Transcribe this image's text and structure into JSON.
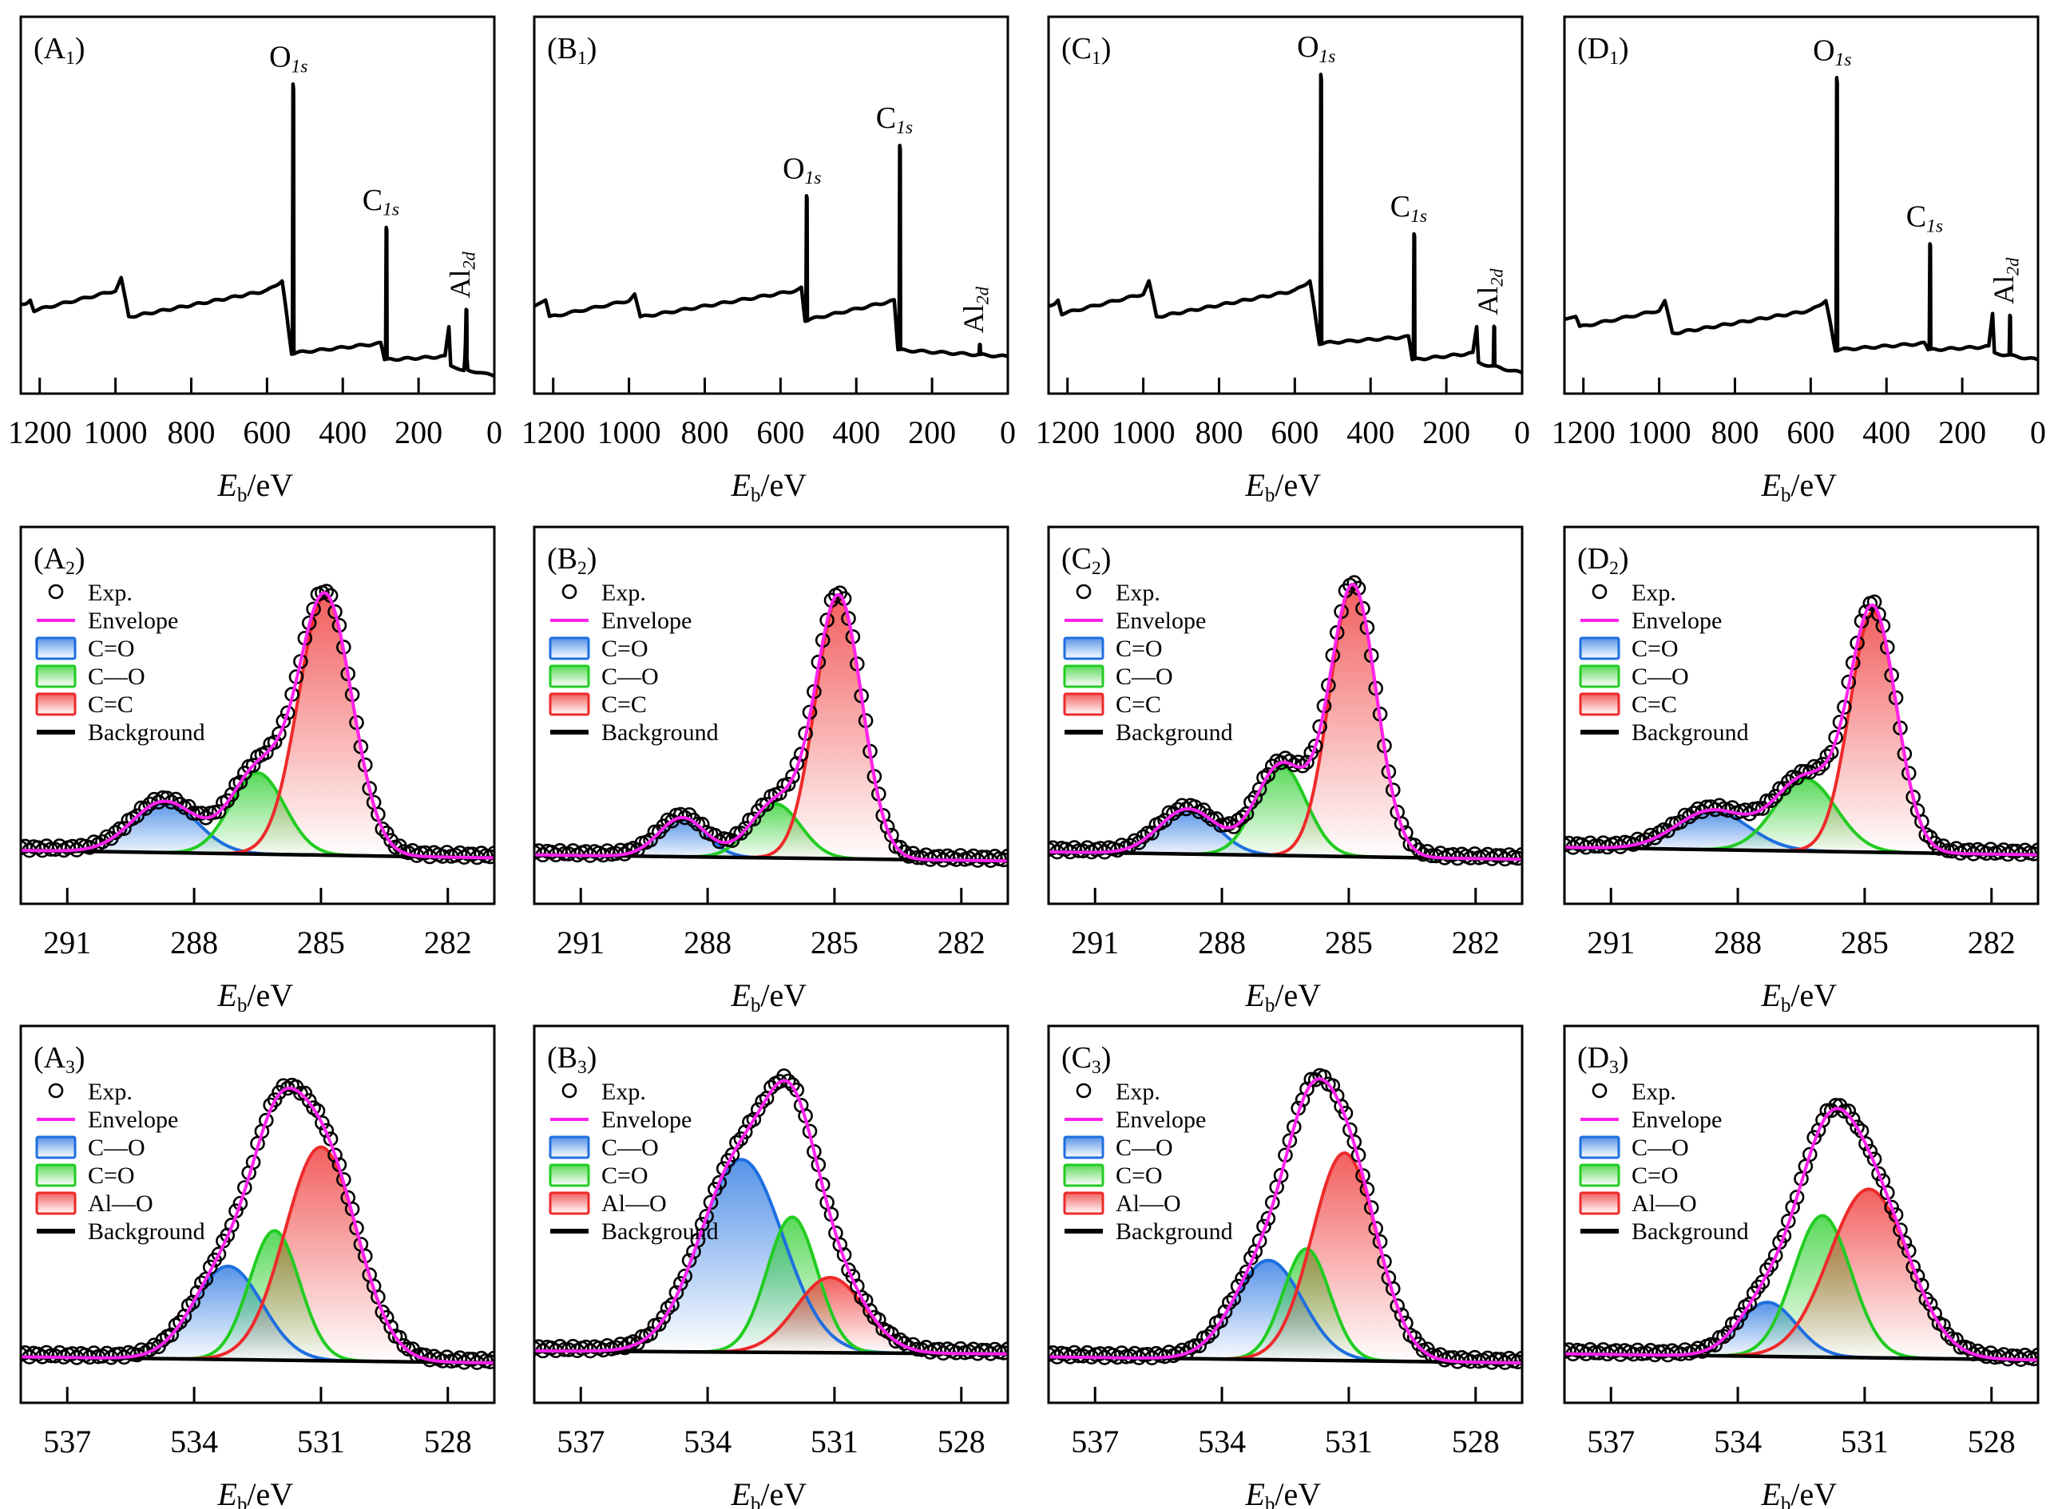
{
  "chart_data": [
    {
      "id": "A1",
      "type": "line",
      "panel_label": "(A",
      "panel_sub": "1",
      "xlabel_main": "E",
      "xlabel_sub": "b",
      "xlabel_unit": "/eV",
      "xlim": [
        1250,
        0
      ],
      "xticks": [
        1200,
        1000,
        800,
        600,
        400,
        200,
        0
      ],
      "peaks": [
        {
          "name": "O",
          "sub": "1s",
          "x": 531,
          "rel_height": 0.82
        },
        {
          "name": "C",
          "sub": "1s",
          "x": 285,
          "rel_height": 0.4
        },
        {
          "name": "Al",
          "sub": "2d",
          "x": 74,
          "rel_height": 0.1,
          "vertical": true
        }
      ],
      "baseline": [
        [
          1250,
          0.195
        ],
        [
          1225,
          0.21
        ],
        [
          1215,
          0.18
        ],
        [
          1000,
          0.24
        ],
        [
          985,
          0.28
        ],
        [
          965,
          0.16
        ],
        [
          600,
          0.24
        ],
        [
          560,
          0.27
        ],
        [
          535,
          0.05
        ],
        [
          300,
          0.08
        ],
        [
          290,
          0.03
        ],
        [
          130,
          0.04
        ],
        [
          120,
          0.13
        ],
        [
          115,
          0.01
        ],
        [
          80,
          0.0
        ],
        [
          75,
          0.08
        ],
        [
          70,
          0.0
        ],
        [
          0,
          -0.02
        ]
      ]
    },
    {
      "id": "B1",
      "type": "line",
      "panel_label": "(B",
      "panel_sub": "1",
      "xlabel_main": "E",
      "xlabel_sub": "b",
      "xlabel_unit": "/eV",
      "xlim": [
        1250,
        0
      ],
      "xticks": [
        1200,
        1000,
        800,
        600,
        400,
        200,
        0
      ],
      "peaks": [
        {
          "name": "O",
          "sub": "1s",
          "x": 531,
          "rel_height": 0.38
        },
        {
          "name": "C",
          "sub": "1s",
          "x": 285,
          "rel_height": 0.62
        },
        {
          "name": "Al",
          "sub": "2d",
          "x": 74,
          "rel_height": 0.03,
          "vertical": true
        }
      ],
      "baseline": [
        [
          1250,
          0.19
        ],
        [
          1220,
          0.21
        ],
        [
          1210,
          0.16
        ],
        [
          1000,
          0.21
        ],
        [
          985,
          0.23
        ],
        [
          970,
          0.16
        ],
        [
          560,
          0.24
        ],
        [
          545,
          0.25
        ],
        [
          535,
          0.15
        ],
        [
          300,
          0.21
        ],
        [
          290,
          0.06
        ],
        [
          0,
          0.04
        ]
      ]
    },
    {
      "id": "C1",
      "type": "line",
      "panel_label": "(C",
      "panel_sub": "1",
      "xlabel_main": "E",
      "xlabel_sub": "b",
      "xlabel_unit": "/eV",
      "xlim": [
        1250,
        0
      ],
      "xticks": [
        1200,
        1000,
        800,
        600,
        400,
        200,
        0
      ],
      "peaks": [
        {
          "name": "O",
          "sub": "1s",
          "x": 531,
          "rel_height": 0.82
        },
        {
          "name": "C",
          "sub": "1s",
          "x": 285,
          "rel_height": 0.38
        },
        {
          "name": "Al",
          "sub": "2d",
          "x": 74,
          "rel_height": 0.12,
          "vertical": true
        }
      ],
      "baseline": [
        [
          1250,
          0.19
        ],
        [
          1225,
          0.21
        ],
        [
          1215,
          0.17
        ],
        [
          1000,
          0.23
        ],
        [
          985,
          0.27
        ],
        [
          965,
          0.16
        ],
        [
          600,
          0.24
        ],
        [
          560,
          0.27
        ],
        [
          535,
          0.08
        ],
        [
          300,
          0.1
        ],
        [
          290,
          0.03
        ],
        [
          130,
          0.05
        ],
        [
          120,
          0.13
        ],
        [
          115,
          0.02
        ],
        [
          0,
          -0.01
        ]
      ]
    },
    {
      "id": "D1",
      "type": "line",
      "panel_label": "(D",
      "panel_sub": "1",
      "xlabel_main": "E",
      "xlabel_sub": "b",
      "xlabel_unit": "/eV",
      "xlim": [
        1250,
        0
      ],
      "xticks": [
        1200,
        1000,
        800,
        600,
        400,
        200,
        0
      ],
      "peaks": [
        {
          "name": "O",
          "sub": "1s",
          "x": 531,
          "rel_height": 0.83
        },
        {
          "name": "C",
          "sub": "1s",
          "x": 285,
          "rel_height": 0.32
        },
        {
          "name": "Al",
          "sub": "2d",
          "x": 74,
          "rel_height": 0.12,
          "vertical": true
        }
      ],
      "baseline": [
        [
          1250,
          0.15
        ],
        [
          1220,
          0.16
        ],
        [
          1210,
          0.13
        ],
        [
          1000,
          0.18
        ],
        [
          985,
          0.21
        ],
        [
          965,
          0.11
        ],
        [
          600,
          0.18
        ],
        [
          560,
          0.21
        ],
        [
          535,
          0.06
        ],
        [
          300,
          0.08
        ],
        [
          290,
          0.06
        ],
        [
          130,
          0.07
        ],
        [
          120,
          0.17
        ],
        [
          115,
          0.05
        ],
        [
          0,
          0.03
        ]
      ]
    },
    {
      "id": "A2",
      "type": "line",
      "panel_label": "(A",
      "panel_sub": "2",
      "xlabel_main": "E",
      "xlabel_sub": "b",
      "xlabel_unit": "/eV",
      "xlim": [
        292.1,
        280.9
      ],
      "xticks": [
        291,
        288,
        285,
        282
      ],
      "legend": [
        {
          "kind": "marker",
          "label": "Exp."
        },
        {
          "kind": "line",
          "label": "Envelope",
          "color": "#ff22ee"
        },
        {
          "kind": "fill",
          "label": "C=O",
          "color": "#1e6fe0"
        },
        {
          "kind": "fill",
          "label": "C—O",
          "color": "#22cc22"
        },
        {
          "kind": "fill",
          "label": "C=C",
          "color": "#ee2a2a"
        },
        {
          "kind": "line",
          "label": "Background",
          "color": "#000000"
        }
      ],
      "components": [
        {
          "label": "C=O",
          "center": 288.7,
          "height": 0.17,
          "fwhm": 1.8,
          "color": "#1e6fe0"
        },
        {
          "label": "C—O",
          "center": 286.5,
          "height": 0.27,
          "fwhm": 1.5,
          "color": "#22cc22"
        },
        {
          "label": "C=C",
          "center": 284.9,
          "height": 0.86,
          "fwhm": 1.5,
          "color": "#ee2a2a"
        }
      ],
      "background": [
        0.045,
        0.02
      ]
    },
    {
      "id": "B2",
      "type": "line",
      "panel_label": "(B",
      "panel_sub": "2",
      "xlabel_main": "E",
      "xlabel_sub": "b",
      "xlabel_unit": "/eV",
      "xlim": [
        292.1,
        280.9
      ],
      "xticks": [
        291,
        288,
        285,
        282
      ],
      "legend": [
        {
          "kind": "marker",
          "label": "Exp."
        },
        {
          "kind": "line",
          "label": "Envelope",
          "color": "#ff22ee"
        },
        {
          "kind": "fill",
          "label": "C=O",
          "color": "#1e6fe0"
        },
        {
          "kind": "fill",
          "label": "C—O",
          "color": "#22cc22"
        },
        {
          "kind": "fill",
          "label": "C=C",
          "color": "#ee2a2a"
        },
        {
          "kind": "line",
          "label": "Background",
          "color": "#000000"
        }
      ],
      "components": [
        {
          "label": "C=O",
          "center": 288.6,
          "height": 0.13,
          "fwhm": 1.3,
          "color": "#1e6fe0"
        },
        {
          "label": "C—O",
          "center": 286.4,
          "height": 0.18,
          "fwhm": 1.4,
          "color": "#22cc22"
        },
        {
          "label": "C=C",
          "center": 284.9,
          "height": 0.87,
          "fwhm": 1.3,
          "color": "#ee2a2a"
        }
      ],
      "background": [
        0.03,
        0.01
      ]
    },
    {
      "id": "C2",
      "type": "line",
      "panel_label": "(C",
      "panel_sub": "2",
      "xlabel_main": "E",
      "xlabel_sub": "b",
      "xlabel_unit": "/eV",
      "xlim": [
        292.1,
        280.9
      ],
      "xticks": [
        291,
        288,
        285,
        282
      ],
      "legend": [
        {
          "kind": "marker",
          "label": "Exp."
        },
        {
          "kind": "line",
          "label": "Envelope",
          "color": "#ff22ee"
        },
        {
          "kind": "fill",
          "label": "C=O",
          "color": "#1e6fe0"
        },
        {
          "kind": "fill",
          "label": "C—O",
          "color": "#22cc22"
        },
        {
          "kind": "fill",
          "label": "C=C",
          "color": "#ee2a2a"
        },
        {
          "kind": "line",
          "label": "Background",
          "color": "#000000"
        }
      ],
      "components": [
        {
          "label": "C=O",
          "center": 288.8,
          "height": 0.15,
          "fwhm": 1.6,
          "color": "#1e6fe0"
        },
        {
          "label": "C—O",
          "center": 286.6,
          "height": 0.3,
          "fwhm": 1.4,
          "color": "#22cc22"
        },
        {
          "label": "C=C",
          "center": 284.9,
          "height": 0.9,
          "fwhm": 1.3,
          "color": "#ee2a2a"
        }
      ],
      "background": [
        0.04,
        0.015
      ]
    },
    {
      "id": "D2",
      "type": "line",
      "panel_label": "(D",
      "panel_sub": "2",
      "xlabel_main": "E",
      "xlabel_sub": "b",
      "xlabel_unit": "/eV",
      "xlim": [
        292.1,
        280.9
      ],
      "xticks": [
        291,
        288,
        285,
        282
      ],
      "legend": [
        {
          "kind": "marker",
          "label": "Exp."
        },
        {
          "kind": "line",
          "label": "Envelope",
          "color": "#ff22ee"
        },
        {
          "kind": "fill",
          "label": "C=O",
          "color": "#1e6fe0"
        },
        {
          "kind": "fill",
          "label": "C—O",
          "color": "#22cc22"
        },
        {
          "kind": "fill",
          "label": "C=C",
          "color": "#ee2a2a"
        },
        {
          "kind": "line",
          "label": "Background",
          "color": "#000000"
        }
      ],
      "components": [
        {
          "label": "C=O",
          "center": 288.6,
          "height": 0.13,
          "fwhm": 2.0,
          "color": "#1e6fe0"
        },
        {
          "label": "C—O",
          "center": 286.4,
          "height": 0.24,
          "fwhm": 1.7,
          "color": "#22cc22"
        },
        {
          "label": "C=C",
          "center": 284.8,
          "height": 0.8,
          "fwhm": 1.3,
          "color": "#ee2a2a"
        }
      ],
      "background": [
        0.055,
        0.03
      ]
    },
    {
      "id": "A3",
      "type": "line",
      "panel_label": "(A",
      "panel_sub": "3",
      "xlabel_main": "E",
      "xlabel_sub": "b",
      "xlabel_unit": "/eV",
      "xlim": [
        538.1,
        526.9
      ],
      "xticks": [
        537,
        534,
        531,
        528
      ],
      "legend": [
        {
          "kind": "marker",
          "label": "Exp."
        },
        {
          "kind": "line",
          "label": "Envelope",
          "color": "#ff22ee"
        },
        {
          "kind": "fill",
          "label": "C—O",
          "color": "#1e6fe0"
        },
        {
          "kind": "fill",
          "label": "C=O",
          "color": "#22cc22"
        },
        {
          "kind": "fill",
          "label": "Al—O",
          "color": "#ee2a2a"
        },
        {
          "kind": "line",
          "label": "Background",
          "color": "#000000"
        }
      ],
      "components": [
        {
          "label": "C—O",
          "center": 533.2,
          "height": 0.31,
          "fwhm": 1.9,
          "color": "#1e6fe0"
        },
        {
          "label": "C=O",
          "center": 532.1,
          "height": 0.43,
          "fwhm": 1.4,
          "color": "#22cc22"
        },
        {
          "label": "Al—O",
          "center": 531.0,
          "height": 0.71,
          "fwhm": 2.0,
          "color": "#ee2a2a"
        }
      ],
      "background": [
        0.02,
        0.0
      ]
    },
    {
      "id": "B3",
      "type": "line",
      "panel_label": "(B",
      "panel_sub": "3",
      "xlabel_main": "E",
      "xlabel_sub": "b",
      "xlabel_unit": "/eV",
      "xlim": [
        538.1,
        526.9
      ],
      "xticks": [
        537,
        534,
        531,
        528
      ],
      "legend": [
        {
          "kind": "marker",
          "label": "Exp."
        },
        {
          "kind": "line",
          "label": "Envelope",
          "color": "#ff22ee"
        },
        {
          "kind": "fill",
          "label": "C—O",
          "color": "#1e6fe0"
        },
        {
          "kind": "fill",
          "label": "C=O",
          "color": "#22cc22"
        },
        {
          "kind": "fill",
          "label": "Al—O",
          "color": "#ee2a2a"
        },
        {
          "kind": "line",
          "label": "Background",
          "color": "#000000"
        }
      ],
      "components": [
        {
          "label": "C—O",
          "center": 533.2,
          "height": 0.64,
          "fwhm": 2.3,
          "color": "#1e6fe0"
        },
        {
          "label": "C=O",
          "center": 532.0,
          "height": 0.45,
          "fwhm": 1.4,
          "color": "#22cc22"
        },
        {
          "label": "Al—O",
          "center": 531.1,
          "height": 0.25,
          "fwhm": 1.9,
          "color": "#ee2a2a"
        }
      ],
      "background": [
        0.04,
        0.03
      ]
    },
    {
      "id": "C3",
      "type": "line",
      "panel_label": "(C",
      "panel_sub": "3",
      "xlabel_main": "E",
      "xlabel_sub": "b",
      "xlabel_unit": "/eV",
      "xlim": [
        538.1,
        526.9
      ],
      "xticks": [
        537,
        534,
        531,
        528
      ],
      "legend": [
        {
          "kind": "marker",
          "label": "Exp."
        },
        {
          "kind": "line",
          "label": "Envelope",
          "color": "#ff22ee"
        },
        {
          "kind": "fill",
          "label": "C—O",
          "color": "#1e6fe0"
        },
        {
          "kind": "fill",
          "label": "C=O",
          "color": "#22cc22"
        },
        {
          "kind": "fill",
          "label": "Al—O",
          "color": "#ee2a2a"
        },
        {
          "kind": "line",
          "label": "Background",
          "color": "#000000"
        }
      ],
      "components": [
        {
          "label": "C—O",
          "center": 532.9,
          "height": 0.33,
          "fwhm": 1.9,
          "color": "#1e6fe0"
        },
        {
          "label": "C=O",
          "center": 532.0,
          "height": 0.37,
          "fwhm": 1.3,
          "color": "#22cc22"
        },
        {
          "label": "Al—O",
          "center": 531.1,
          "height": 0.69,
          "fwhm": 1.8,
          "color": "#ee2a2a"
        }
      ],
      "background": [
        0.02,
        0.0
      ]
    },
    {
      "id": "D3",
      "type": "line",
      "panel_label": "(D",
      "panel_sub": "3",
      "xlabel_main": "E",
      "xlabel_sub": "b",
      "xlabel_unit": "/eV",
      "xlim": [
        538.1,
        526.9
      ],
      "xticks": [
        537,
        534,
        531,
        528
      ],
      "legend": [
        {
          "kind": "marker",
          "label": "Exp."
        },
        {
          "kind": "line",
          "label": "Envelope",
          "color": "#ff22ee"
        },
        {
          "kind": "fill",
          "label": "C—O",
          "color": "#1e6fe0"
        },
        {
          "kind": "fill",
          "label": "C=O",
          "color": "#22cc22"
        },
        {
          "kind": "fill",
          "label": "Al—O",
          "color": "#ee2a2a"
        },
        {
          "kind": "line",
          "label": "Background",
          "color": "#000000"
        }
      ],
      "components": [
        {
          "label": "C—O",
          "center": 533.3,
          "height": 0.18,
          "fwhm": 1.6,
          "color": "#1e6fe0"
        },
        {
          "label": "C=O",
          "center": 532.0,
          "height": 0.47,
          "fwhm": 1.6,
          "color": "#22cc22"
        },
        {
          "label": "Al—O",
          "center": 530.9,
          "height": 0.56,
          "fwhm": 2.2,
          "color": "#ee2a2a"
        }
      ],
      "background": [
        0.03,
        0.01
      ]
    }
  ]
}
